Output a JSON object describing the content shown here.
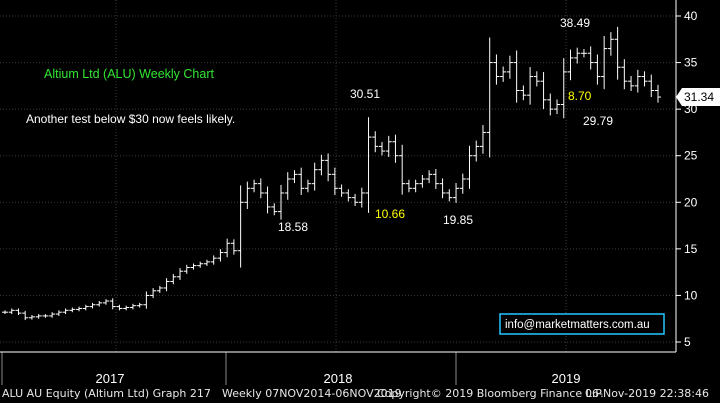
{
  "chart_data": {
    "type": "bar",
    "title": "Altium Ltd (ALU) Weekly Chart",
    "subtitle": "Another test below $30 now feels likely.",
    "ylim": [
      4,
      41
    ],
    "y_ticks": [
      5,
      10,
      15,
      20,
      25,
      30,
      35,
      40
    ],
    "x_ticks": [
      "2017",
      "2018",
      "2019"
    ],
    "grid": true,
    "last_price": "31.34",
    "email": "info@marketmatters.com.au",
    "colors": {
      "background": "#000000",
      "bars": "#ffffff",
      "grid": "#3a3a3a",
      "title": "#33e633",
      "highlight": "#ffff00",
      "price_box": "#ffffff",
      "email_border": "#22c8ff"
    },
    "annotations": [
      {
        "text": "30.51",
        "color": "#ffffff"
      },
      {
        "text": "18.58",
        "color": "#ffffff"
      },
      {
        "text": "10.66",
        "color": "#ffff00"
      },
      {
        "text": "19.85",
        "color": "#ffffff"
      },
      {
        "text": "38.49",
        "color": "#ffffff"
      },
      {
        "text": "8.70",
        "color": "#ffff00"
      },
      {
        "text": "29.79",
        "color": "#ffffff"
      }
    ],
    "series": [
      {
        "values": [
          8.2,
          8.4,
          8.1,
          7.6,
          7.7,
          7.8,
          7.8,
          8.0,
          8.2,
          8.4,
          8.5,
          8.6,
          8.8,
          9.0,
          9.2,
          9.4,
          8.8,
          8.6,
          8.7,
          8.9,
          9.0,
          10.0,
          10.5,
          10.8,
          11.5,
          12.0,
          12.6,
          13.0,
          13.2,
          13.4,
          13.6,
          14.0,
          14.6,
          15.6,
          14.8,
          20.0,
          21.5,
          22.0,
          21.0,
          19.5,
          19.0,
          21.0,
          22.5,
          23.0,
          21.5,
          22.0,
          23.5,
          24.5,
          23.0,
          21.5,
          21.0,
          20.5,
          20.0,
          21.0,
          27.0,
          26.0,
          25.5,
          26.5,
          25.0,
          22.0,
          21.5,
          22.0,
          22.5,
          23.0,
          22.0,
          21.0,
          20.5,
          21.5,
          22.5,
          25.0,
          26.0,
          27.5,
          35.0,
          33.5,
          34.0,
          35.0,
          32.0,
          31.5,
          33.5,
          33.0,
          31.0,
          30.0,
          30.5,
          34.0,
          35.5,
          36.0,
          36.0,
          35.0,
          33.5,
          36.5,
          37.5,
          34.5,
          33.0,
          32.5,
          33.5,
          33.0,
          32.0,
          31.3
        ]
      }
    ]
  },
  "footer": {
    "left": "ALU AU Equity (Altium Ltd) Graph 217",
    "mid": "Weekly 07NOV2014-06NOV2019",
    "copy": "Copyright© 2019 Bloomberg Finance L.P.",
    "right": "06-Nov-2019 22:38:46"
  }
}
